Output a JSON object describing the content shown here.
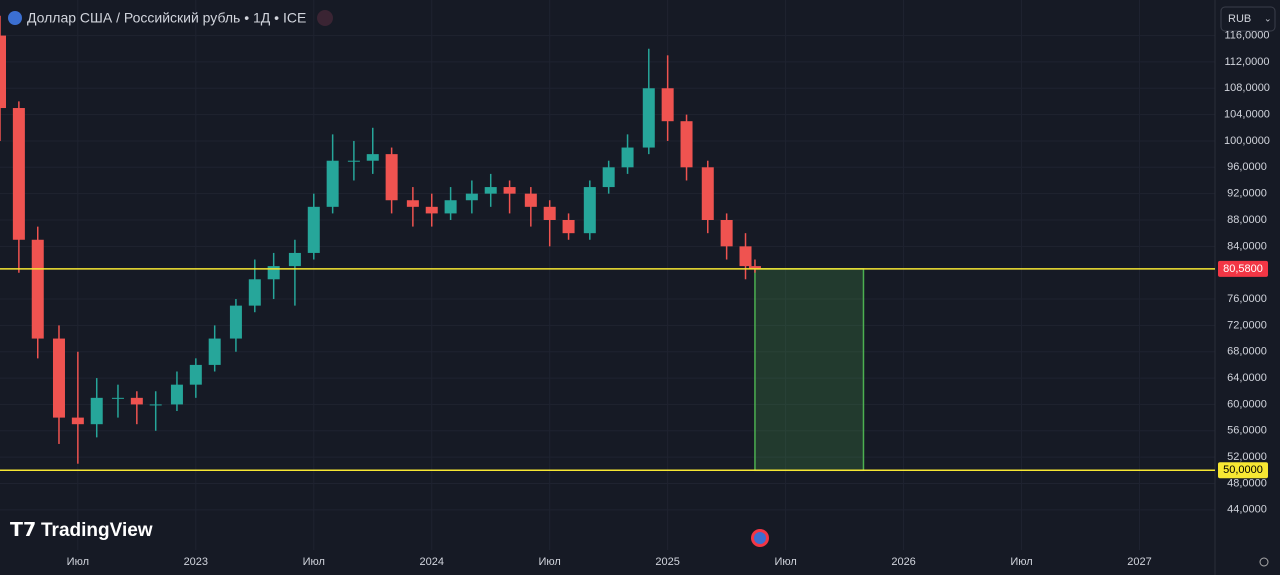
{
  "header": {
    "title": "Доллар США / Российский рубль • 1Д • ICE",
    "currency": "RUB",
    "logo": "TradingView"
  },
  "chart_data": {
    "type": "candlestick",
    "x": [
      2022.17,
      2022.25,
      2022.33,
      2022.42,
      2022.5,
      2022.58,
      2022.67,
      2022.75,
      2022.83,
      2022.92,
      2023.0,
      2023.08,
      2023.17,
      2023.25,
      2023.33,
      2023.42,
      2023.5,
      2023.58,
      2023.67,
      2023.75,
      2023.83,
      2023.92,
      2024.0,
      2024.08,
      2024.17,
      2024.25,
      2024.33,
      2024.42,
      2024.5,
      2024.58,
      2024.67,
      2024.75,
      2024.83,
      2024.92,
      2025.0,
      2025.08,
      2025.17,
      2025.25,
      2025.33,
      2025.37
    ],
    "open": [
      116,
      105,
      85,
      70,
      58,
      57,
      61,
      61,
      60,
      60,
      63,
      66,
      70,
      75,
      79,
      81,
      83,
      90,
      97,
      97,
      98,
      91,
      90,
      89,
      91,
      92,
      93,
      92,
      90,
      88,
      86,
      93,
      96,
      99,
      108,
      103,
      96,
      88,
      84,
      81
    ],
    "high": [
      119,
      106,
      87,
      72,
      68,
      64,
      63,
      62,
      62,
      65,
      67,
      72,
      76,
      82,
      83,
      85,
      92,
      101,
      100,
      102,
      99,
      93,
      92,
      93,
      94,
      95,
      94,
      93,
      91,
      89,
      94,
      97,
      101,
      114,
      113,
      104,
      97,
      89,
      86,
      82
    ],
    "low": [
      100,
      80,
      67,
      54,
      51,
      55,
      58,
      57,
      56,
      59,
      61,
      65,
      68,
      74,
      76,
      75,
      82,
      89,
      94,
      95,
      89,
      87,
      87,
      88,
      89,
      90,
      89,
      87,
      84,
      85,
      85,
      92,
      95,
      98,
      100,
      94,
      86,
      82,
      79,
      80
    ],
    "close": [
      105,
      85,
      70,
      58,
      57,
      61,
      61,
      60,
      60,
      63,
      66,
      70,
      75,
      79,
      81,
      83,
      90,
      97,
      97,
      98,
      91,
      90,
      89,
      91,
      92,
      93,
      92,
      90,
      88,
      86,
      93,
      96,
      99,
      108,
      103,
      96,
      88,
      84,
      81,
      80.58
    ],
    "up_color": "#26a69a",
    "down_color": "#ef5350",
    "xlim": [
      2022.17,
      2027.32
    ],
    "ylim": [
      37.9,
      121.4
    ],
    "xticks": [
      {
        "value": 2022.5,
        "label": "Июл"
      },
      2023,
      {
        "value": 2023.5,
        "label": "Июл"
      },
      2024,
      {
        "value": 2024.5,
        "label": "Июл"
      },
      2025,
      {
        "value": 2025.5,
        "label": "Июл"
      },
      2026,
      {
        "value": 2026.5,
        "label": "Июл"
      },
      2027
    ],
    "yticks": [
      {
        "value": 44,
        "label": "44,0000"
      },
      {
        "value": 48,
        "label": "48,0000"
      },
      {
        "value": 52,
        "label": "52,0000"
      },
      {
        "value": 56,
        "label": "56,0000"
      },
      {
        "value": 60,
        "label": "60,0000"
      },
      {
        "value": 64,
        "label": "64,0000"
      },
      {
        "value": 68,
        "label": "68,0000"
      },
      {
        "value": 72,
        "label": "72,0000"
      },
      {
        "value": 76,
        "label": "76,0000"
      },
      {
        "value": 84,
        "label": "84,0000"
      },
      {
        "value": 88,
        "label": "88,0000"
      },
      {
        "value": 92,
        "label": "92,0000"
      },
      {
        "value": 96,
        "label": "96,0000"
      },
      {
        "value": 100,
        "label": "100,0000"
      },
      {
        "value": 104,
        "label": "104,0000"
      },
      {
        "value": 108,
        "label": "108,0000"
      },
      {
        "value": 112,
        "label": "112,0000"
      },
      {
        "value": 116,
        "label": "116,0000"
      }
    ],
    "grid": true,
    "price_lines": [
      {
        "value": 80.58,
        "label": "80,5800",
        "color": "#f7e733",
        "badge_color": "#f23645",
        "text_color": "#ffffff"
      },
      {
        "value": 50,
        "label": "50,0000",
        "color": "#f7e733",
        "badge_color": "#f7e733",
        "text_color": "#000000"
      }
    ],
    "zone": {
      "x": [
        2025.37,
        2025.83
      ],
      "y": [
        50,
        80.58
      ],
      "color": "#4caf50"
    }
  }
}
